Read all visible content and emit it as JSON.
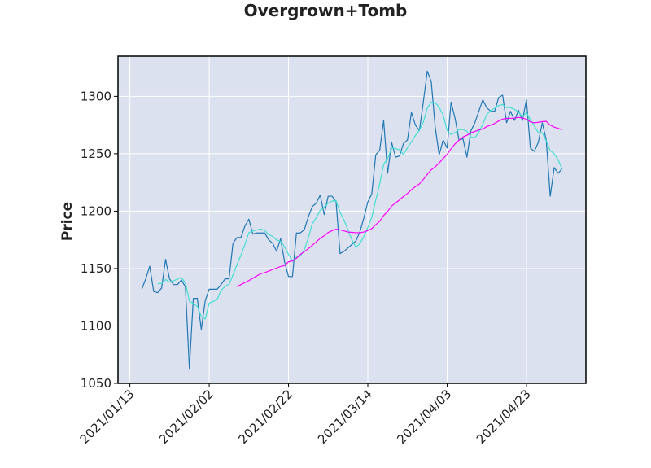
{
  "chart_data": {
    "type": "line",
    "title": "Overgrown+Tomb",
    "y_label": "Price",
    "x": [
      "2021/01/16",
      "2021/01/17",
      "2021/01/18",
      "2021/01/19",
      "2021/01/20",
      "2021/01/21",
      "2021/01/22",
      "2021/01/23",
      "2021/01/24",
      "2021/01/25",
      "2021/01/26",
      "2021/01/27",
      "2021/01/28",
      "2021/01/29",
      "2021/01/30",
      "2021/01/31",
      "2021/02/01",
      "2021/02/02",
      "2021/02/03",
      "2021/02/04",
      "2021/02/05",
      "2021/02/06",
      "2021/02/07",
      "2021/02/08",
      "2021/02/09",
      "2021/02/10",
      "2021/02/11",
      "2021/02/12",
      "2021/02/13",
      "2021/02/14",
      "2021/02/15",
      "2021/02/16",
      "2021/02/17",
      "2021/02/18",
      "2021/02/19",
      "2021/02/20",
      "2021/02/21",
      "2021/02/22",
      "2021/02/23",
      "2021/02/24",
      "2021/02/25",
      "2021/02/26",
      "2021/02/27",
      "2021/02/28",
      "2021/03/01",
      "2021/03/02",
      "2021/03/03",
      "2021/03/04",
      "2021/03/05",
      "2021/03/06",
      "2021/03/07",
      "2021/03/08",
      "2021/03/09",
      "2021/03/10",
      "2021/03/11",
      "2021/03/12",
      "2021/03/13",
      "2021/03/14",
      "2021/03/15",
      "2021/03/16",
      "2021/03/17",
      "2021/03/18",
      "2021/03/19",
      "2021/03/20",
      "2021/03/21",
      "2021/03/22",
      "2021/03/23",
      "2021/03/24",
      "2021/03/25",
      "2021/03/26",
      "2021/03/27",
      "2021/03/28",
      "2021/03/29",
      "2021/03/30",
      "2021/03/31",
      "2021/04/01",
      "2021/04/02",
      "2021/04/03",
      "2021/04/04",
      "2021/04/05",
      "2021/04/06",
      "2021/04/07",
      "2021/04/08",
      "2021/04/09",
      "2021/04/10",
      "2021/04/11",
      "2021/04/12",
      "2021/04/13",
      "2021/04/14",
      "2021/04/15",
      "2021/04/16",
      "2021/04/17",
      "2021/04/18",
      "2021/04/19",
      "2021/04/20",
      "2021/04/21",
      "2021/04/22",
      "2021/04/23",
      "2021/04/24",
      "2021/04/25",
      "2021/04/26",
      "2021/04/27",
      "2021/04/28",
      "2021/04/29",
      "2021/04/30",
      "2021/05/01",
      "2021/05/02"
    ],
    "series": [
      {
        "color": "#1f77b4",
        "width": 1.2,
        "values": [
          1132,
          1141,
          1152,
          1130,
          1129,
          1133,
          1158,
          1141,
          1136,
          1136,
          1140,
          1134,
          1063,
          1124,
          1124,
          1097,
          1122,
          1132,
          1132,
          1132,
          1136,
          1141,
          1141,
          1172,
          1177,
          1177,
          1187,
          1193,
          1180,
          1181,
          1181,
          1181,
          1175,
          1172,
          1165,
          1176,
          1156,
          1143,
          1143,
          1181,
          1181,
          1184,
          1195,
          1204,
          1207,
          1214,
          1197,
          1213,
          1213,
          1208,
          1163,
          1165,
          1168,
          1171,
          1174,
          1182,
          1194,
          1208,
          1215,
          1249,
          1253,
          1279,
          1233,
          1260,
          1247,
          1248,
          1259,
          1262,
          1286,
          1275,
          1270,
          1295,
          1322,
          1313,
          1273,
          1249,
          1262,
          1255,
          1295,
          1281,
          1262,
          1263,
          1247,
          1270,
          1277,
          1287,
          1297,
          1290,
          1287,
          1287,
          1299,
          1301,
          1277,
          1287,
          1279,
          1288,
          1279,
          1297,
          1255,
          1252,
          1260,
          1277,
          1262,
          1213,
          1238,
          1233,
          1237
        ]
      },
      {
        "color": "#40e0d0",
        "width": 1.2,
        "values": [
          null,
          null,
          null,
          null,
          1136.8,
          1137,
          1140.4,
          1138.2,
          1139.4,
          1140.8,
          1142.2,
          1137.4,
          1121.8,
          1119.4,
          1117,
          1108.4,
          1106,
          1119.8,
          1121.4,
          1123,
          1130.8,
          1134.6,
          1136.4,
          1144.4,
          1153.4,
          1161.6,
          1170.8,
          1181.2,
          1182.8,
          1183.6,
          1184.4,
          1183.2,
          1179.6,
          1178,
          1174.8,
          1173.8,
          1168.8,
          1162.4,
          1156.6,
          1159.8,
          1160.8,
          1166.4,
          1176.8,
          1189,
          1194.2,
          1200.8,
          1203.4,
          1207,
          1208.8,
          1209,
          1198.8,
          1192.4,
          1183.4,
          1175,
          1168.2,
          1172,
          1177.8,
          1185.8,
          1194.6,
          1209.6,
          1223.8,
          1240.8,
          1245.8,
          1254.8,
          1254.4,
          1253.4,
          1249.4,
          1255.2,
          1260.4,
          1266,
          1270.4,
          1277.6,
          1289.6,
          1295,
          1294.6,
          1290.4,
          1283.8,
          1270.4,
          1266.8,
          1268.4,
          1271,
          1271.2,
          1269.6,
          1264.6,
          1263.8,
          1268.8,
          1275.6,
          1284.2,
          1287.6,
          1289.6,
          1292,
          1292.8,
          1290.2,
          1290.2,
          1288.6,
          1286.4,
          1282,
          1286,
          1279.6,
          1274.2,
          1268.6,
          1268.2,
          1261.2,
          1252.8,
          1250,
          1244.6,
          1236.6
        ]
      },
      {
        "color": "#ff00ff",
        "width": 1.2,
        "values": [
          null,
          null,
          null,
          null,
          null,
          null,
          null,
          null,
          null,
          null,
          null,
          null,
          null,
          null,
          null,
          null,
          null,
          null,
          null,
          null,
          null,
          null,
          null,
          null,
          1134.2,
          1136,
          1137.8,
          1139.5,
          1141.5,
          1143.6,
          1145.5,
          1146.4,
          1147.8,
          1149.2,
          1150.4,
          1151.8,
          1152.7,
          1155.9,
          1156.6,
          1158.9,
          1162.3,
          1164.8,
          1167.3,
          1170.2,
          1173.2,
          1176.3,
          1178.5,
          1181.4,
          1183,
          1184.3,
          1183.7,
          1182.8,
          1181.8,
          1181.5,
          1181.2,
          1181.2,
          1181.8,
          1183.1,
          1184.8,
          1188.2,
          1191.2,
          1196.2,
          1199.8,
          1204.4,
          1207.1,
          1209.8,
          1212.8,
          1215.4,
          1218.7,
          1221.4,
          1223.7,
          1227.6,
          1232,
          1236,
          1238.6,
          1242,
          1245.9,
          1249.4,
          1254.3,
          1258.6,
          1261.8,
          1264.6,
          1266.1,
          1268.3,
          1269.4,
          1270.8,
          1271.5,
          1273.8,
          1274.9,
          1276.5,
          1278.5,
          1280.2,
          1280.8,
          1280.8,
          1281,
          1281.7,
          1281.1,
          1280.1,
          1277.8,
          1276.9,
          1277.4,
          1278,
          1278.2,
          1275,
          1273.2,
          1272.1,
          1271
        ]
      }
    ],
    "xlim": [
      "2021/01/10",
      "2021/05/08"
    ],
    "xticks": [
      "2021/01/13",
      "2021/02/02",
      "2021/02/22",
      "2021/03/14",
      "2021/04/03",
      "2021/04/23"
    ],
    "ylim": [
      1050,
      1335
    ],
    "yticks": [
      1050,
      1100,
      1150,
      1200,
      1250,
      1300
    ],
    "grid": true,
    "background": "#dce1ef"
  }
}
